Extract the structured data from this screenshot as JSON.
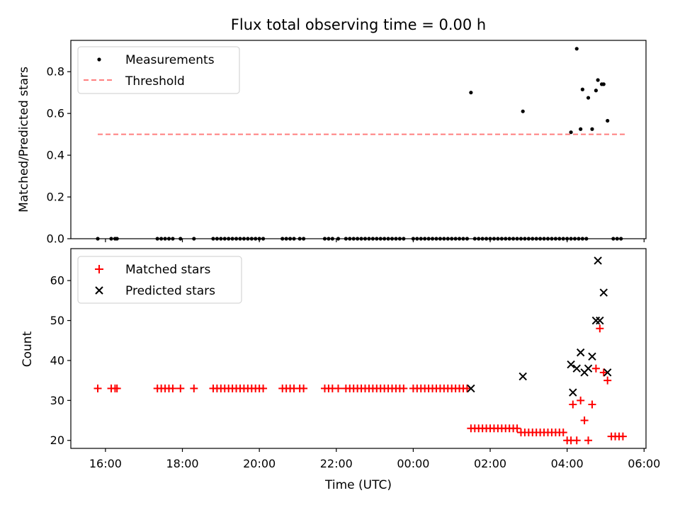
{
  "chart_data": [
    {
      "type": "scatter",
      "title": "Flux total observing time = 0.00 h",
      "xlabel": "",
      "ylabel": "Matched/Predicted stars",
      "xlim": [
        15.1,
        30.05
      ],
      "ylim": [
        0,
        0.95
      ],
      "yticks": [
        0,
        0.2,
        0.4,
        0.6,
        0.8
      ],
      "ytick_labels": [
        "0.0",
        "0.2",
        "0.4",
        "0.6",
        "0.8"
      ],
      "legend": [
        "Measurements",
        "Threshold"
      ],
      "legend_position": "top-left",
      "threshold": {
        "name": "Threshold",
        "value": 0.5,
        "x_range": [
          15.8,
          29.5
        ],
        "color": "#ff7f7f",
        "style": "dashed"
      },
      "series": [
        {
          "name": "Measurements",
          "marker": "dot",
          "color": "#000000",
          "x_zero": [
            15.8,
            16.15,
            16.25,
            16.3,
            17.35,
            17.45,
            17.55,
            17.65,
            17.75,
            17.95,
            18.3,
            18.8,
            18.9,
            19.0,
            19.1,
            19.2,
            19.3,
            19.4,
            19.5,
            19.6,
            19.7,
            19.8,
            19.9,
            20.0,
            20.1,
            20.6,
            20.7,
            20.8,
            20.9,
            21.05,
            21.15,
            21.7,
            21.8,
            21.9,
            22.05,
            22.25,
            22.35,
            22.45,
            22.55,
            22.65,
            22.75,
            22.85,
            22.95,
            23.05,
            23.15,
            23.25,
            23.35,
            23.45,
            23.55,
            23.65,
            23.75,
            24.0,
            24.1,
            24.2,
            24.3,
            24.4,
            24.5,
            24.6,
            24.7,
            24.8,
            24.9,
            25.0,
            25.1,
            25.2,
            25.3,
            25.4,
            25.6,
            25.7,
            25.8,
            25.9,
            26.0,
            26.1,
            26.2,
            26.3,
            26.4,
            26.5,
            26.6,
            26.7,
            26.8,
            26.9,
            27.0,
            27.1,
            27.2,
            27.3,
            27.4,
            27.5,
            27.6,
            27.7,
            27.8,
            27.9,
            28.0,
            28.1,
            28.2,
            28.3,
            28.4,
            28.5,
            29.2,
            29.3,
            29.4
          ],
          "x": [
            25.5,
            26.85,
            28.1,
            28.25,
            28.35,
            28.4,
            28.55,
            28.65,
            28.75,
            28.8,
            28.9,
            28.95,
            29.05
          ],
          "y": [
            0.7,
            0.61,
            0.51,
            0.91,
            0.525,
            0.715,
            0.675,
            0.525,
            0.71,
            0.76,
            0.74,
            0.74,
            0.565
          ]
        }
      ]
    },
    {
      "type": "scatter",
      "title": "",
      "xlabel": "Time (UTC)",
      "ylabel": "Count",
      "xlim": [
        15.1,
        30.05
      ],
      "ylim": [
        18,
        68
      ],
      "yticks": [
        20,
        30,
        40,
        50,
        60
      ],
      "ytick_labels": [
        "20",
        "30",
        "40",
        "50",
        "60"
      ],
      "xticks": [
        16,
        18,
        20,
        22,
        24,
        26,
        28,
        30
      ],
      "xtick_labels": [
        "16:00",
        "18:00",
        "20:00",
        "22:00",
        "00:00",
        "02:00",
        "04:00",
        "06:00"
      ],
      "legend": [
        "Matched stars",
        "Predicted stars"
      ],
      "legend_position": "top-left",
      "series": [
        {
          "name": "Matched stars",
          "marker": "plus",
          "color": "#ff0000",
          "x": [
            15.8,
            16.15,
            16.25,
            16.3,
            17.35,
            17.45,
            17.55,
            17.65,
            17.75,
            17.95,
            18.3,
            18.8,
            18.9,
            19.0,
            19.1,
            19.2,
            19.3,
            19.4,
            19.5,
            19.6,
            19.7,
            19.8,
            19.9,
            20.0,
            20.1,
            20.6,
            20.7,
            20.8,
            20.9,
            21.05,
            21.15,
            21.7,
            21.8,
            21.9,
            22.05,
            22.25,
            22.35,
            22.45,
            22.55,
            22.65,
            22.75,
            22.85,
            22.95,
            23.05,
            23.15,
            23.25,
            23.35,
            23.45,
            23.55,
            23.65,
            23.75,
            24.0,
            24.1,
            24.2,
            24.3,
            24.4,
            24.5,
            24.6,
            24.7,
            24.8,
            24.9,
            25.0,
            25.1,
            25.2,
            25.3,
            25.4,
            25.5,
            25.6,
            25.7,
            25.8,
            25.9,
            26.0,
            26.1,
            26.2,
            26.3,
            26.4,
            26.5,
            26.6,
            26.7,
            26.8,
            26.9,
            27.0,
            27.1,
            27.2,
            27.3,
            27.4,
            27.5,
            27.6,
            27.7,
            27.8,
            27.9,
            28.0,
            28.1,
            28.15,
            28.25,
            28.35,
            28.45,
            28.55,
            28.65,
            28.75,
            28.85,
            28.95,
            29.05,
            29.15,
            29.25,
            29.35,
            29.45
          ],
          "y": [
            33,
            33,
            33,
            33,
            33,
            33,
            33,
            33,
            33,
            33,
            33,
            33,
            33,
            33,
            33,
            33,
            33,
            33,
            33,
            33,
            33,
            33,
            33,
            33,
            33,
            33,
            33,
            33,
            33,
            33,
            33,
            33,
            33,
            33,
            33,
            33,
            33,
            33,
            33,
            33,
            33,
            33,
            33,
            33,
            33,
            33,
            33,
            33,
            33,
            33,
            33,
            33,
            33,
            33,
            33,
            33,
            33,
            33,
            33,
            33,
            33,
            33,
            33,
            33,
            33,
            33,
            23,
            23,
            23,
            23,
            23,
            23,
            23,
            23,
            23,
            23,
            23,
            23,
            23,
            22,
            22,
            22,
            22,
            22,
            22,
            22,
            22,
            22,
            22,
            22,
            22,
            20,
            20,
            29,
            20,
            30,
            25,
            20,
            29,
            38,
            48,
            37,
            35,
            21,
            21,
            21,
            21
          ]
        },
        {
          "name": "Predicted stars",
          "marker": "x",
          "color": "#000000",
          "x": [
            25.5,
            26.85,
            28.1,
            28.15,
            28.25,
            28.35,
            28.45,
            28.55,
            28.65,
            28.75,
            28.8,
            28.85,
            28.95,
            29.05
          ],
          "y": [
            33,
            36,
            39,
            32,
            38,
            42,
            37,
            38,
            41,
            50,
            65,
            50,
            57,
            37
          ]
        }
      ]
    }
  ]
}
